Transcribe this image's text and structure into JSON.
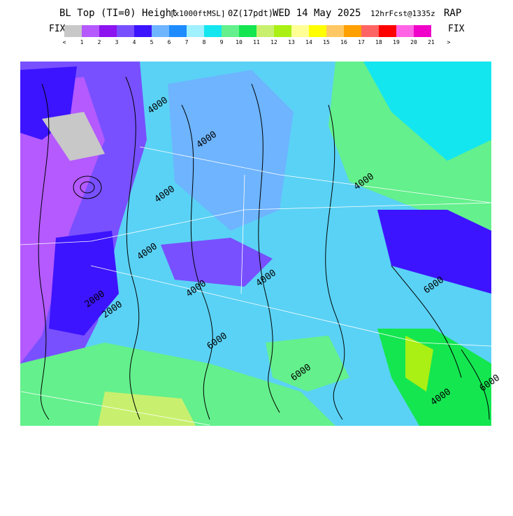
{
  "header": {
    "title_parts": [
      "BL Top (TI=0) Height",
      "[x1000ftMSL]",
      "0Z(17pdt)",
      "WED 14 May 2025",
      "12hrFcst@1335z",
      "RAP"
    ]
  },
  "legend": {
    "left": "FIX",
    "right": "FIX",
    "labels": [
      "<",
      "1",
      "2",
      "3",
      "4",
      "5",
      "6",
      "7",
      "8",
      "9",
      "10",
      "11",
      "12",
      "13",
      "14",
      "15",
      "16",
      "17",
      "18",
      "19",
      "20",
      "21",
      ">"
    ],
    "colors": [
      "#c8c8c8",
      "#b45aff",
      "#8c14f0",
      "#7850ff",
      "#3c14ff",
      "#6eb4ff",
      "#1e8cff",
      "#a0f0ff",
      "#14e6f0",
      "#64f08c",
      "#14e650",
      "#c8f06e",
      "#aaf014",
      "#ffff96",
      "#ffff00",
      "#ffc864",
      "#ffa000",
      "#ff6464",
      "#ff0000",
      "#ff64e6",
      "#f000c8"
    ]
  },
  "map": {
    "contour_labels": [
      "4000",
      "4000",
      "4000",
      "4000",
      "4000",
      "4000",
      "2000",
      "2000",
      "4000",
      "6000",
      "6000",
      "6000",
      "4000",
      "6000"
    ]
  }
}
